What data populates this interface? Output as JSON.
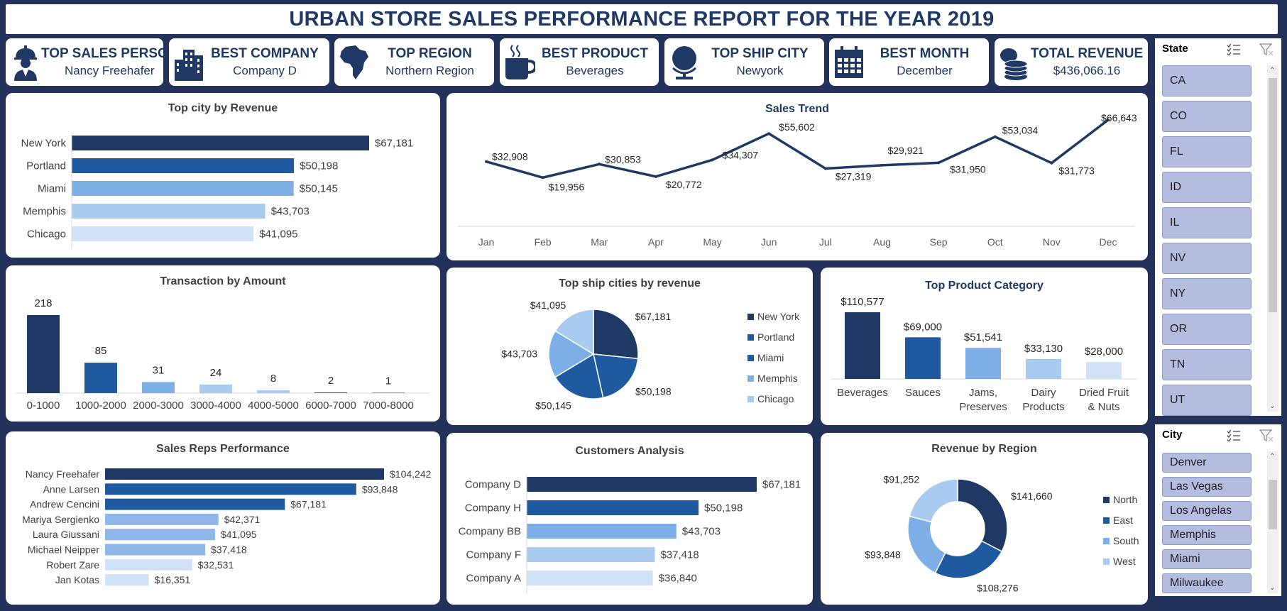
{
  "title": "URBAN STORE SALES PERFORMANCE REPORT FOR THE YEAR 2019",
  "kpis": [
    {
      "label": "TOP SALES PERSON",
      "value": "Nancy Freehafer",
      "icon": "worker-icon"
    },
    {
      "label": "BEST COMPANY",
      "value": "Company D",
      "icon": "buildings-icon"
    },
    {
      "label": "TOP REGION",
      "value": "Northern Region",
      "icon": "africa-map-icon"
    },
    {
      "label": "BEST PRODUCT",
      "value": "Beverages",
      "icon": "coffee-cup-icon"
    },
    {
      "label": "TOP SHIP CITY",
      "value": "Newyork",
      "icon": "globe-icon"
    },
    {
      "label": "BEST MONTH",
      "value": "December",
      "icon": "calendar-icon"
    },
    {
      "label": "TOTAL REVENUE",
      "value": "$436,066.16",
      "icon": "coins-icon"
    }
  ],
  "colors": {
    "navy": "#1f3864",
    "dark_blue": "#1f5aa0",
    "mid_blue": "#7eaee6",
    "light_blue": "#a9cbef",
    "pale_blue": "#d2e2f6",
    "background": "#23325a",
    "slicer_item": "#b4bde0"
  },
  "chart_data": [
    {
      "id": "top_city",
      "type": "bar",
      "orientation": "horizontal",
      "title": "Top city by Revenue",
      "categories": [
        "New York",
        "Portland",
        "Miami",
        "Memphis",
        "Chicago"
      ],
      "values": [
        67181,
        50198,
        50145,
        43703,
        41095
      ],
      "labels": [
        "$67,181",
        "$50,198",
        "$50,145",
        "$43,703",
        "$41,095"
      ]
    },
    {
      "id": "sales_trend",
      "type": "line",
      "title": "Sales Trend",
      "categories": [
        "Jan",
        "Feb",
        "Mar",
        "Apr",
        "May",
        "Jun",
        "Jul",
        "Aug",
        "Sep",
        "Oct",
        "Nov",
        "Dec"
      ],
      "values": [
        32908,
        19956,
        30853,
        20772,
        34307,
        55602,
        27319,
        29921,
        31950,
        53034,
        31773,
        66643
      ],
      "labels": [
        "$32,908",
        "$19,956",
        "$30,853",
        "$20,772",
        "$34,307",
        "$55,602",
        "$27,319",
        "$29,921",
        "$31,950",
        "$53,034",
        "$31,773",
        "$66,643"
      ]
    },
    {
      "id": "transactions",
      "type": "bar",
      "title": "Transaction by Amount",
      "categories": [
        "0-1000",
        "1000-2000",
        "2000-3000",
        "3000-4000",
        "4000-5000",
        "6000-7000",
        "7000-8000"
      ],
      "values": [
        218,
        85,
        31,
        24,
        8,
        2,
        1
      ],
      "labels": [
        "218",
        "85",
        "31",
        "24",
        "8",
        "2",
        "1"
      ]
    },
    {
      "id": "ship_cities",
      "type": "pie",
      "title": "Top ship cities by revenue",
      "categories": [
        "New York",
        "Portland",
        "Miami",
        "Memphis",
        "Chicago"
      ],
      "values": [
        67181,
        50198,
        50145,
        43703,
        41095
      ],
      "labels": [
        "$67,181",
        "$50,198",
        "$50,145",
        "$43,703",
        "$41,095"
      ],
      "legend": "right"
    },
    {
      "id": "product_category",
      "type": "bar",
      "title": "Top Product Category",
      "categories": [
        "Beverages",
        "Sauces",
        "Jams, Preserves",
        "Dairy Products",
        "Dried Fruit & Nuts"
      ],
      "category_lines": [
        [
          "Beverages"
        ],
        [
          "Sauces"
        ],
        [
          "Jams,",
          "Preserves"
        ],
        [
          "Dairy",
          "Products"
        ],
        [
          "Dried Fruit",
          "& Nuts"
        ]
      ],
      "values": [
        110577,
        69000,
        51541,
        33130,
        28000
      ],
      "labels": [
        "$110,577",
        "$69,000",
        "$51,541",
        "$33,130",
        "$28,000"
      ]
    },
    {
      "id": "sales_reps",
      "type": "bar",
      "orientation": "horizontal",
      "title": "Sales Reps Performance",
      "categories": [
        "Nancy Freehafer",
        "Anne Larsen",
        "Andrew Cencini",
        "Mariya Sergienko",
        "Laura Giussani",
        "Michael Neipper",
        "Robert Zare",
        "Jan Kotas"
      ],
      "values": [
        104242,
        93848,
        67181,
        42371,
        41095,
        37418,
        32531,
        16351
      ],
      "labels": [
        "$104,242",
        "$93,848",
        "$67,181",
        "$42,371",
        "$41,095",
        "$37,418",
        "$32,531",
        "$16,351"
      ]
    },
    {
      "id": "customers",
      "type": "bar",
      "orientation": "horizontal",
      "title": "Customers Analysis",
      "categories": [
        "Company D",
        "Company H",
        "Company BB",
        "Company F",
        "Company A"
      ],
      "values": [
        67181,
        50198,
        43703,
        37418,
        36840
      ],
      "labels": [
        "$67,181",
        "$50,198",
        "$43,703",
        "$37,418",
        "$36,840"
      ]
    },
    {
      "id": "region",
      "type": "pie",
      "donut": true,
      "title": "Revenue by Region",
      "categories": [
        "North",
        "East",
        "South",
        "West"
      ],
      "values": [
        141660,
        108276,
        93848,
        91252
      ],
      "labels": [
        "$141,660",
        "$108,276",
        "$93,848",
        "$91,252"
      ],
      "legend": "right"
    }
  ],
  "slicers": {
    "state": {
      "title": "State",
      "items": [
        "CA",
        "CO",
        "FL",
        "ID",
        "IL",
        "NV",
        "NY",
        "OR",
        "TN",
        "UT"
      ]
    },
    "city": {
      "title": "City",
      "items": [
        "Denver",
        "Las Vegas",
        "Los Angelas",
        "Memphis",
        "Miami",
        "Milwaukee"
      ]
    }
  }
}
